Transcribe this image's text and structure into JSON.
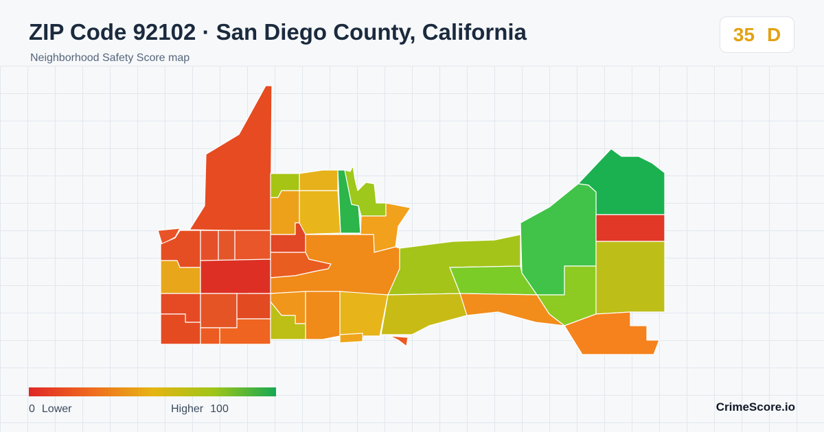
{
  "header": {
    "title": "ZIP Code 92102 · San Diego County, California",
    "subtitle": "Neighborhood Safety Score map"
  },
  "score": {
    "value": "35",
    "grade": "D",
    "color": "#e4a114"
  },
  "legend": {
    "min_value": "0",
    "min_label": "Lower",
    "max_label": "Higher",
    "max_value": "100",
    "scale_colors": [
      "#e02727",
      "#ef6a1e",
      "#e6b413",
      "#9ec51a",
      "#16a852"
    ]
  },
  "brand": {
    "name": "CrimeScore.io"
  },
  "map": {
    "regions": [
      {
        "id": "northwest-spire",
        "color": "#e64b21"
      },
      {
        "id": "west-edge-tip",
        "color": "#e85428"
      },
      {
        "id": "west-a1",
        "color": "#e54e22"
      },
      {
        "id": "west-a2",
        "color": "#e5502a"
      },
      {
        "id": "west-a3",
        "color": "#e5552a"
      },
      {
        "id": "west-a4",
        "color": "#e8562a"
      },
      {
        "id": "west-b1",
        "color": "#e4551d"
      },
      {
        "id": "west-b2",
        "color": "#e5571f"
      },
      {
        "id": "west-c1",
        "color": "#e8a61a"
      },
      {
        "id": "west-center",
        "color": "#dd2f24"
      },
      {
        "id": "west-d1",
        "color": "#e54a25"
      },
      {
        "id": "west-d2",
        "color": "#e55424"
      },
      {
        "id": "west-d3",
        "color": "#e24a22"
      },
      {
        "id": "west-e1",
        "color": "#e54b21"
      },
      {
        "id": "west-e2",
        "color": "#eb5b22"
      },
      {
        "id": "west-e3",
        "color": "#ee6420"
      },
      {
        "id": "north-lime",
        "color": "#a6c414"
      },
      {
        "id": "north-yellow",
        "color": "#e6b11a"
      },
      {
        "id": "north-green-strip",
        "color": "#2bb54a"
      },
      {
        "id": "north-lime-right",
        "color": "#9ec81b"
      },
      {
        "id": "north-orange-left",
        "color": "#eda11b"
      },
      {
        "id": "north-gold",
        "color": "#e8b61b"
      },
      {
        "id": "north-orange-right",
        "color": "#f2a11c"
      },
      {
        "id": "mid-red",
        "color": "#e24726"
      },
      {
        "id": "mid-orange-left",
        "color": "#ea5d21"
      },
      {
        "id": "mid-orange-main",
        "color": "#f08a19"
      },
      {
        "id": "mid-orange-right",
        "color": "#f39117"
      },
      {
        "id": "center-lime-large",
        "color": "#a5c41a"
      },
      {
        "id": "center-green",
        "color": "#7ccc28"
      },
      {
        "id": "south-olive",
        "color": "#c6b815"
      },
      {
        "id": "south-orange-a",
        "color": "#f0961a"
      },
      {
        "id": "south-orange-b",
        "color": "#f08a19"
      },
      {
        "id": "south-gold",
        "color": "#e7b41a"
      },
      {
        "id": "south-small-lime",
        "color": "#bdbe16"
      },
      {
        "id": "south-center-olive",
        "color": "#c8bb15"
      },
      {
        "id": "south-tip",
        "color": "#ec5a24"
      },
      {
        "id": "south-amber",
        "color": "#efa51b"
      },
      {
        "id": "east-dark-green",
        "color": "#1bb150"
      },
      {
        "id": "east-green",
        "color": "#40c348"
      },
      {
        "id": "east-red",
        "color": "#e13827"
      },
      {
        "id": "east-lime",
        "color": "#8dcb22"
      },
      {
        "id": "east-olive",
        "color": "#bdbe17"
      },
      {
        "id": "east-orange-a",
        "color": "#f28c1a"
      },
      {
        "id": "east-orange-b",
        "color": "#f5821c"
      }
    ]
  }
}
